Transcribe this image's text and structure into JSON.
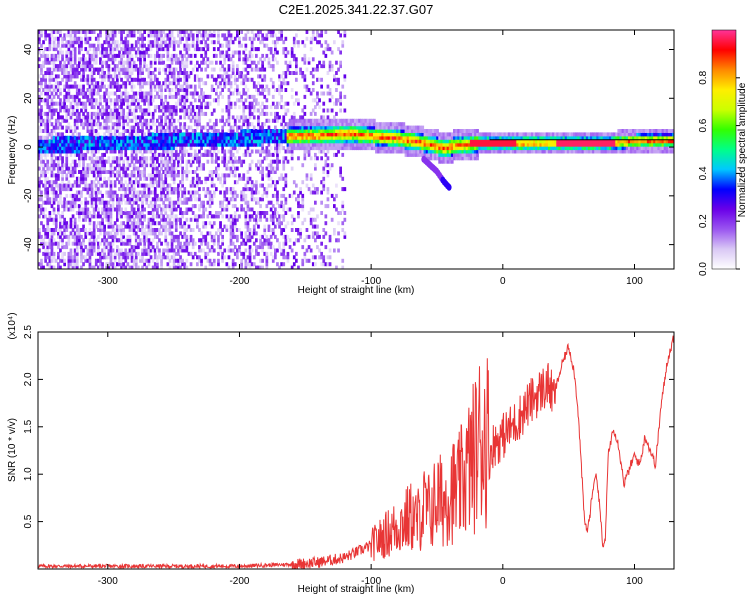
{
  "title": "C2E1.2025.341.22.37.G07",
  "chart_data": [
    {
      "type": "heatmap",
      "xlabel": "Height of straight line (km)",
      "ylabel": "Frequency (Hz)",
      "xlim": [
        -353,
        130
      ],
      "ylim": [
        -50,
        48
      ],
      "xticks": [
        -300,
        -200,
        -100,
        0,
        100
      ],
      "xtick_labels": [
        "-300",
        "-200",
        "-100",
        "0",
        "100"
      ],
      "yticks": [
        -40,
        -20,
        0,
        20,
        40
      ],
      "ytick_labels": [
        "-40",
        "-20",
        "0",
        "20",
        "40"
      ],
      "colorbar": {
        "label": "Normalized spectral amplitude",
        "range": [
          0,
          1
        ],
        "ticks": [
          0.0,
          0.2,
          0.4,
          0.6,
          0.8
        ],
        "tick_labels": [
          "0.0",
          "0.2",
          "0.4",
          "0.6",
          "0.8"
        ],
        "colors": [
          "#ffffff",
          "#d9c8f5",
          "#9a55f0",
          "#6a00e8",
          "#0000ff",
          "#00c8ff",
          "#00ff88",
          "#33ff00",
          "#ccff00",
          "#ffee00",
          "#ff8800",
          "#ff0000",
          "#ff3399"
        ]
      },
      "ridge": {
        "x": [
          -353,
          -300,
          -250,
          -200,
          -160,
          -140,
          -120,
          -100,
          -80,
          -60,
          -45,
          -35,
          -20,
          0,
          20,
          50,
          80,
          100,
          130
        ],
        "frequency": [
          0,
          1,
          2,
          3,
          4,
          4,
          5,
          4,
          3,
          1,
          -1,
          0,
          1,
          1,
          1,
          1,
          1,
          2,
          2
        ]
      },
      "branch": {
        "x": [
          -60,
          -50,
          -45,
          -40
        ],
        "frequency": [
          -5,
          -10,
          -14,
          -17
        ]
      },
      "reference_line": {
        "x": [
          -10,
          130
        ],
        "frequency": 3
      }
    },
    {
      "type": "line",
      "xlabel": "Height of straight line (km)",
      "ylabel": "SNR (10 * v/v)",
      "y_multiplier": "(x10⁴)",
      "xlim": [
        -353,
        130
      ],
      "ylim": [
        0,
        2.5
      ],
      "xticks": [
        -300,
        -200,
        -100,
        0,
        100
      ],
      "xtick_labels": [
        "-300",
        "-200",
        "-100",
        "0",
        "100"
      ],
      "yticks": [
        0.5,
        1.0,
        1.5,
        2.0,
        2.5
      ],
      "ytick_labels": [
        "0.5",
        "1.0",
        "1.5",
        "2.0",
        "2.5"
      ],
      "series": [
        {
          "name": "SNR",
          "color": "#e83535",
          "x": [
            -353,
            -200,
            -160,
            -140,
            -120,
            -100,
            -90,
            -80,
            -70,
            -65,
            -60,
            -55,
            -50,
            -45,
            -40,
            -35,
            -30,
            -25,
            -20,
            -17,
            -15,
            -12,
            -10,
            -8,
            0,
            10,
            20,
            30,
            35,
            38,
            42,
            46,
            50,
            54,
            57,
            60,
            62,
            64,
            66,
            68,
            70,
            72,
            74,
            76,
            78,
            80,
            84,
            88,
            92,
            96,
            100,
            104,
            108,
            112,
            116,
            120,
            125,
            130
          ],
          "y": [
            0.03,
            0.03,
            0.05,
            0.07,
            0.12,
            0.25,
            0.35,
            0.45,
            0.55,
            0.5,
            0.65,
            0.6,
            0.75,
            0.7,
            0.85,
            0.8,
            0.95,
            1.1,
            1.25,
            1.4,
            1.35,
            1.45,
            1.2,
            1.3,
            1.4,
            1.55,
            1.75,
            1.9,
            1.95,
            1.8,
            2.0,
            2.2,
            2.35,
            2.1,
            1.7,
            1.0,
            0.5,
            0.4,
            0.55,
            0.8,
            1.0,
            0.9,
            0.6,
            0.2,
            0.35,
            1.2,
            1.5,
            1.3,
            0.9,
            1.05,
            1.2,
            1.1,
            1.4,
            1.25,
            1.1,
            1.7,
            2.2,
            2.45
          ]
        }
      ]
    }
  ]
}
